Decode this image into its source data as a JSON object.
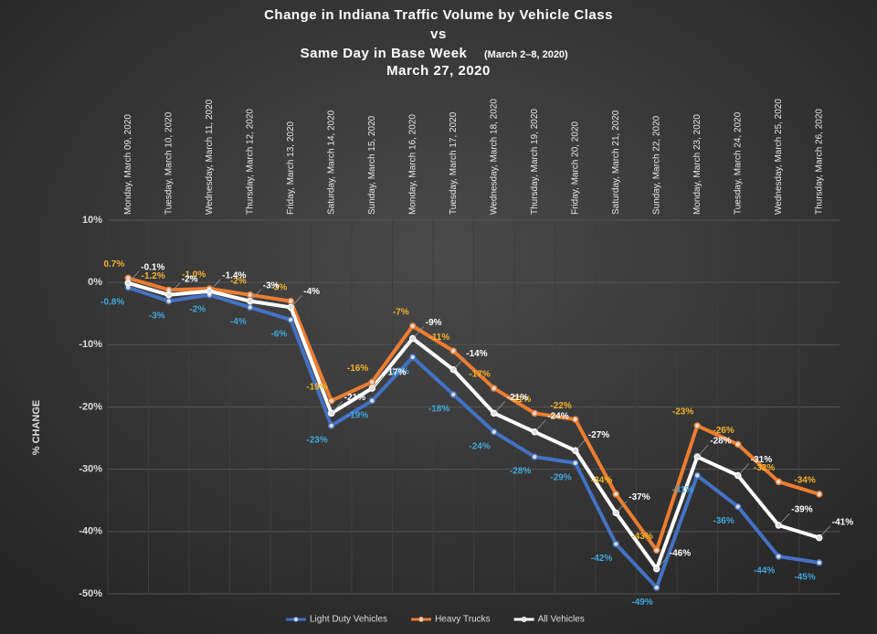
{
  "chart_data": {
    "type": "line",
    "title": "Change in Indiana Traffic Volume by Vehicle Class",
    "title_connector": "vs",
    "subtitle": "Same Day in Base Week",
    "subtitle_note": "(March 2–8, 2020)",
    "date": "March 27, 2020",
    "y_label": "% CHANGE",
    "categories": [
      "Monday, March 09, 2020",
      "Tuesday, March 10, 2020",
      "Wednesday, March 11, 2020",
      "Thursday, March 12, 2020",
      "Friday, March 13, 2020",
      "Saturday, March 14, 2020",
      "Sunday, March 15, 2020",
      "Monday, March 16, 2020",
      "Tuesday, March 17, 2020",
      "Wednesday, March 18, 2020",
      "Thursday, March 19, 2020",
      "Friday, March 20, 2020",
      "Saturday, March 21, 2020",
      "Sunday, March 22, 2020",
      "Monday, March 23, 2020",
      "Tuesday, March 24, 2020",
      "Wednesday, March 25, 2020",
      "Thursday, March 26, 2020"
    ],
    "series": [
      {
        "name": "Light Duty Vehicles",
        "color": "#4472c4",
        "values": [
          -0.8,
          -3,
          -2,
          -4,
          -6,
          -23,
          -19,
          -12,
          -18,
          -24,
          -28,
          -29,
          -42,
          -49,
          -31,
          -36,
          -44,
          -45
        ],
        "value_labels": [
          "-0.8%",
          "-3%",
          "-2%",
          "-4%",
          "-6%",
          "-23%",
          "-19%",
          "-12%",
          "-18%",
          "-24%",
          "-28%",
          "-29%",
          "-42%",
          "-49%",
          "-31%",
          "-36%",
          "-44%",
          "-45%"
        ]
      },
      {
        "name": "Heavy Trucks",
        "color": "#ed7d31",
        "values": [
          0.7,
          -1.2,
          -1.0,
          -2,
          -3,
          -19,
          -16,
          -7,
          -11,
          -17,
          -21,
          -22,
          -34,
          -43,
          -23,
          -26,
          -32,
          -34
        ],
        "value_labels": [
          "0.7%",
          "-1.2%",
          "-1.0%",
          "-2%",
          "-3%",
          "-19%",
          "-16%",
          "-7%",
          "-11%",
          "-17%",
          "-21%",
          "-22%",
          "-34%",
          "-43%",
          "-23%",
          "-26%",
          "-32%",
          "-34%"
        ]
      },
      {
        "name": "All Vehicles",
        "color": "#ffffff",
        "values": [
          -0.1,
          -2,
          -1.4,
          -3,
          -4,
          -21,
          -17,
          -9,
          -14,
          -21,
          -24,
          -27,
          -37,
          -46,
          -28,
          -31,
          -39,
          -41
        ],
        "value_labels": [
          "-0.1%",
          "-2%",
          "-1.4%",
          "-3%",
          "-4%",
          "-21%",
          "-17%",
          "-9%",
          "-14%",
          "-21%",
          "-24%",
          "-27%",
          "-37%",
          "-46%",
          "-28%",
          "-31%",
          "-39%",
          "-41%"
        ]
      }
    ],
    "ylim": [
      -50,
      10
    ],
    "yticks": [
      {
        "value": 10,
        "label": "10%"
      },
      {
        "value": 0,
        "label": "0%"
      },
      {
        "value": -10,
        "label": "-10%"
      },
      {
        "value": -20,
        "label": "-20%"
      },
      {
        "value": -30,
        "label": "-30%"
      },
      {
        "value": -40,
        "label": "-40%"
      },
      {
        "value": -50,
        "label": "-50%"
      }
    ],
    "grid": true
  }
}
